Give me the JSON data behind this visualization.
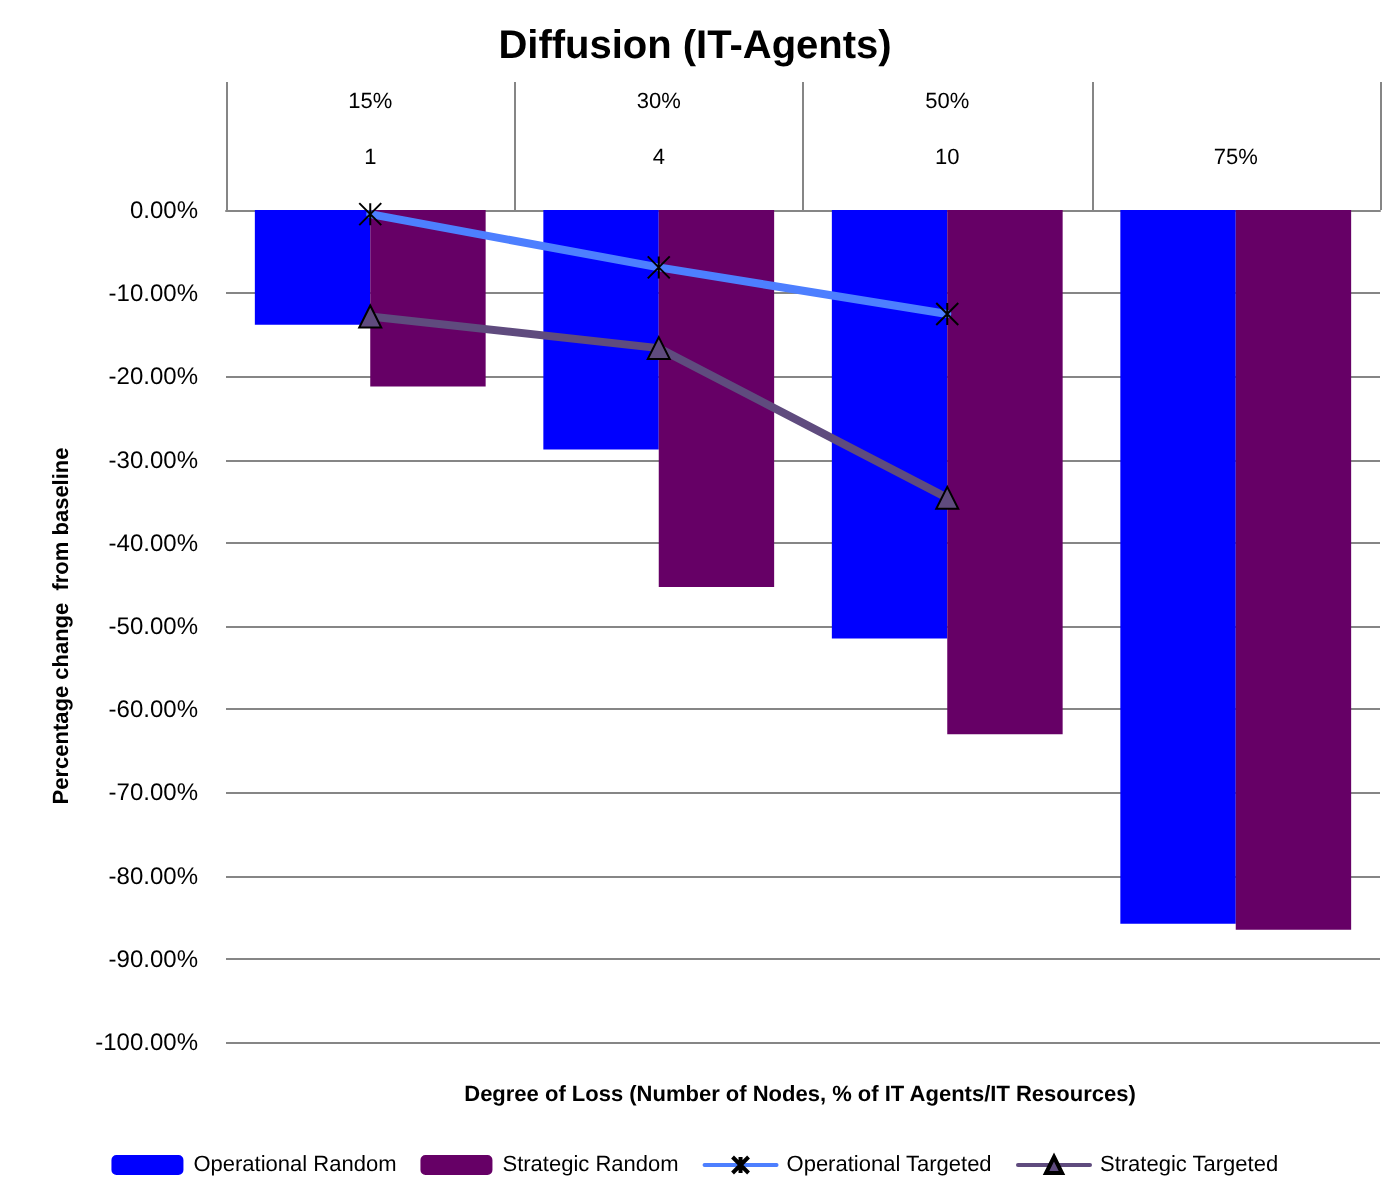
{
  "chart_data": {
    "type": "bar",
    "title": "Diffusion (IT-Agents)",
    "xlabel": "Degree of Loss (Number of Nodes, % of IT Agents/IT Resources)",
    "ylabel": "Percentage change  from baseline",
    "categories": [
      "15%\n1",
      "30%\n4",
      "50%\n10",
      "75%"
    ],
    "series": [
      {
        "name": "Operational Random",
        "color": "#0000ff",
        "values": [
          -13.8,
          -28.8,
          -51.5,
          -85.8
        ]
      },
      {
        "name": "Strategic Random",
        "color": "#660066",
        "values": [
          -21.2,
          -45.3,
          -63.0,
          -86.5
        ]
      },
      {
        "name": "Operational Targeted",
        "type": "line",
        "color": "#4d7fff",
        "marker": "cross",
        "values": [
          -0.5,
          -6.9,
          -12.5,
          null
        ]
      },
      {
        "name": "Strategic Targeted",
        "type": "line",
        "color": "#5f4b7e",
        "marker": "triangle",
        "values": [
          -12.8,
          -16.6,
          -34.6,
          null
        ]
      }
    ],
    "ylim": [
      -100,
      0
    ],
    "yticks": [
      {
        "value": -100,
        "label": "-100.00%"
      },
      {
        "value": -90,
        "label": "-90.00%"
      },
      {
        "value": -80,
        "label": "-80.00%"
      },
      {
        "value": -70,
        "label": "-70.00%"
      },
      {
        "value": -60,
        "label": "-60.00%"
      },
      {
        "value": -50,
        "label": "-50.00%"
      },
      {
        "value": -40,
        "label": "-40.00%"
      },
      {
        "value": -30,
        "label": "-30.00%"
      },
      {
        "value": -20,
        "label": "-20.00%"
      },
      {
        "value": -10,
        "label": "-10.00%"
      },
      {
        "value": 0,
        "label": "0.00%"
      }
    ],
    "grid": "y",
    "legend": "bottom"
  }
}
